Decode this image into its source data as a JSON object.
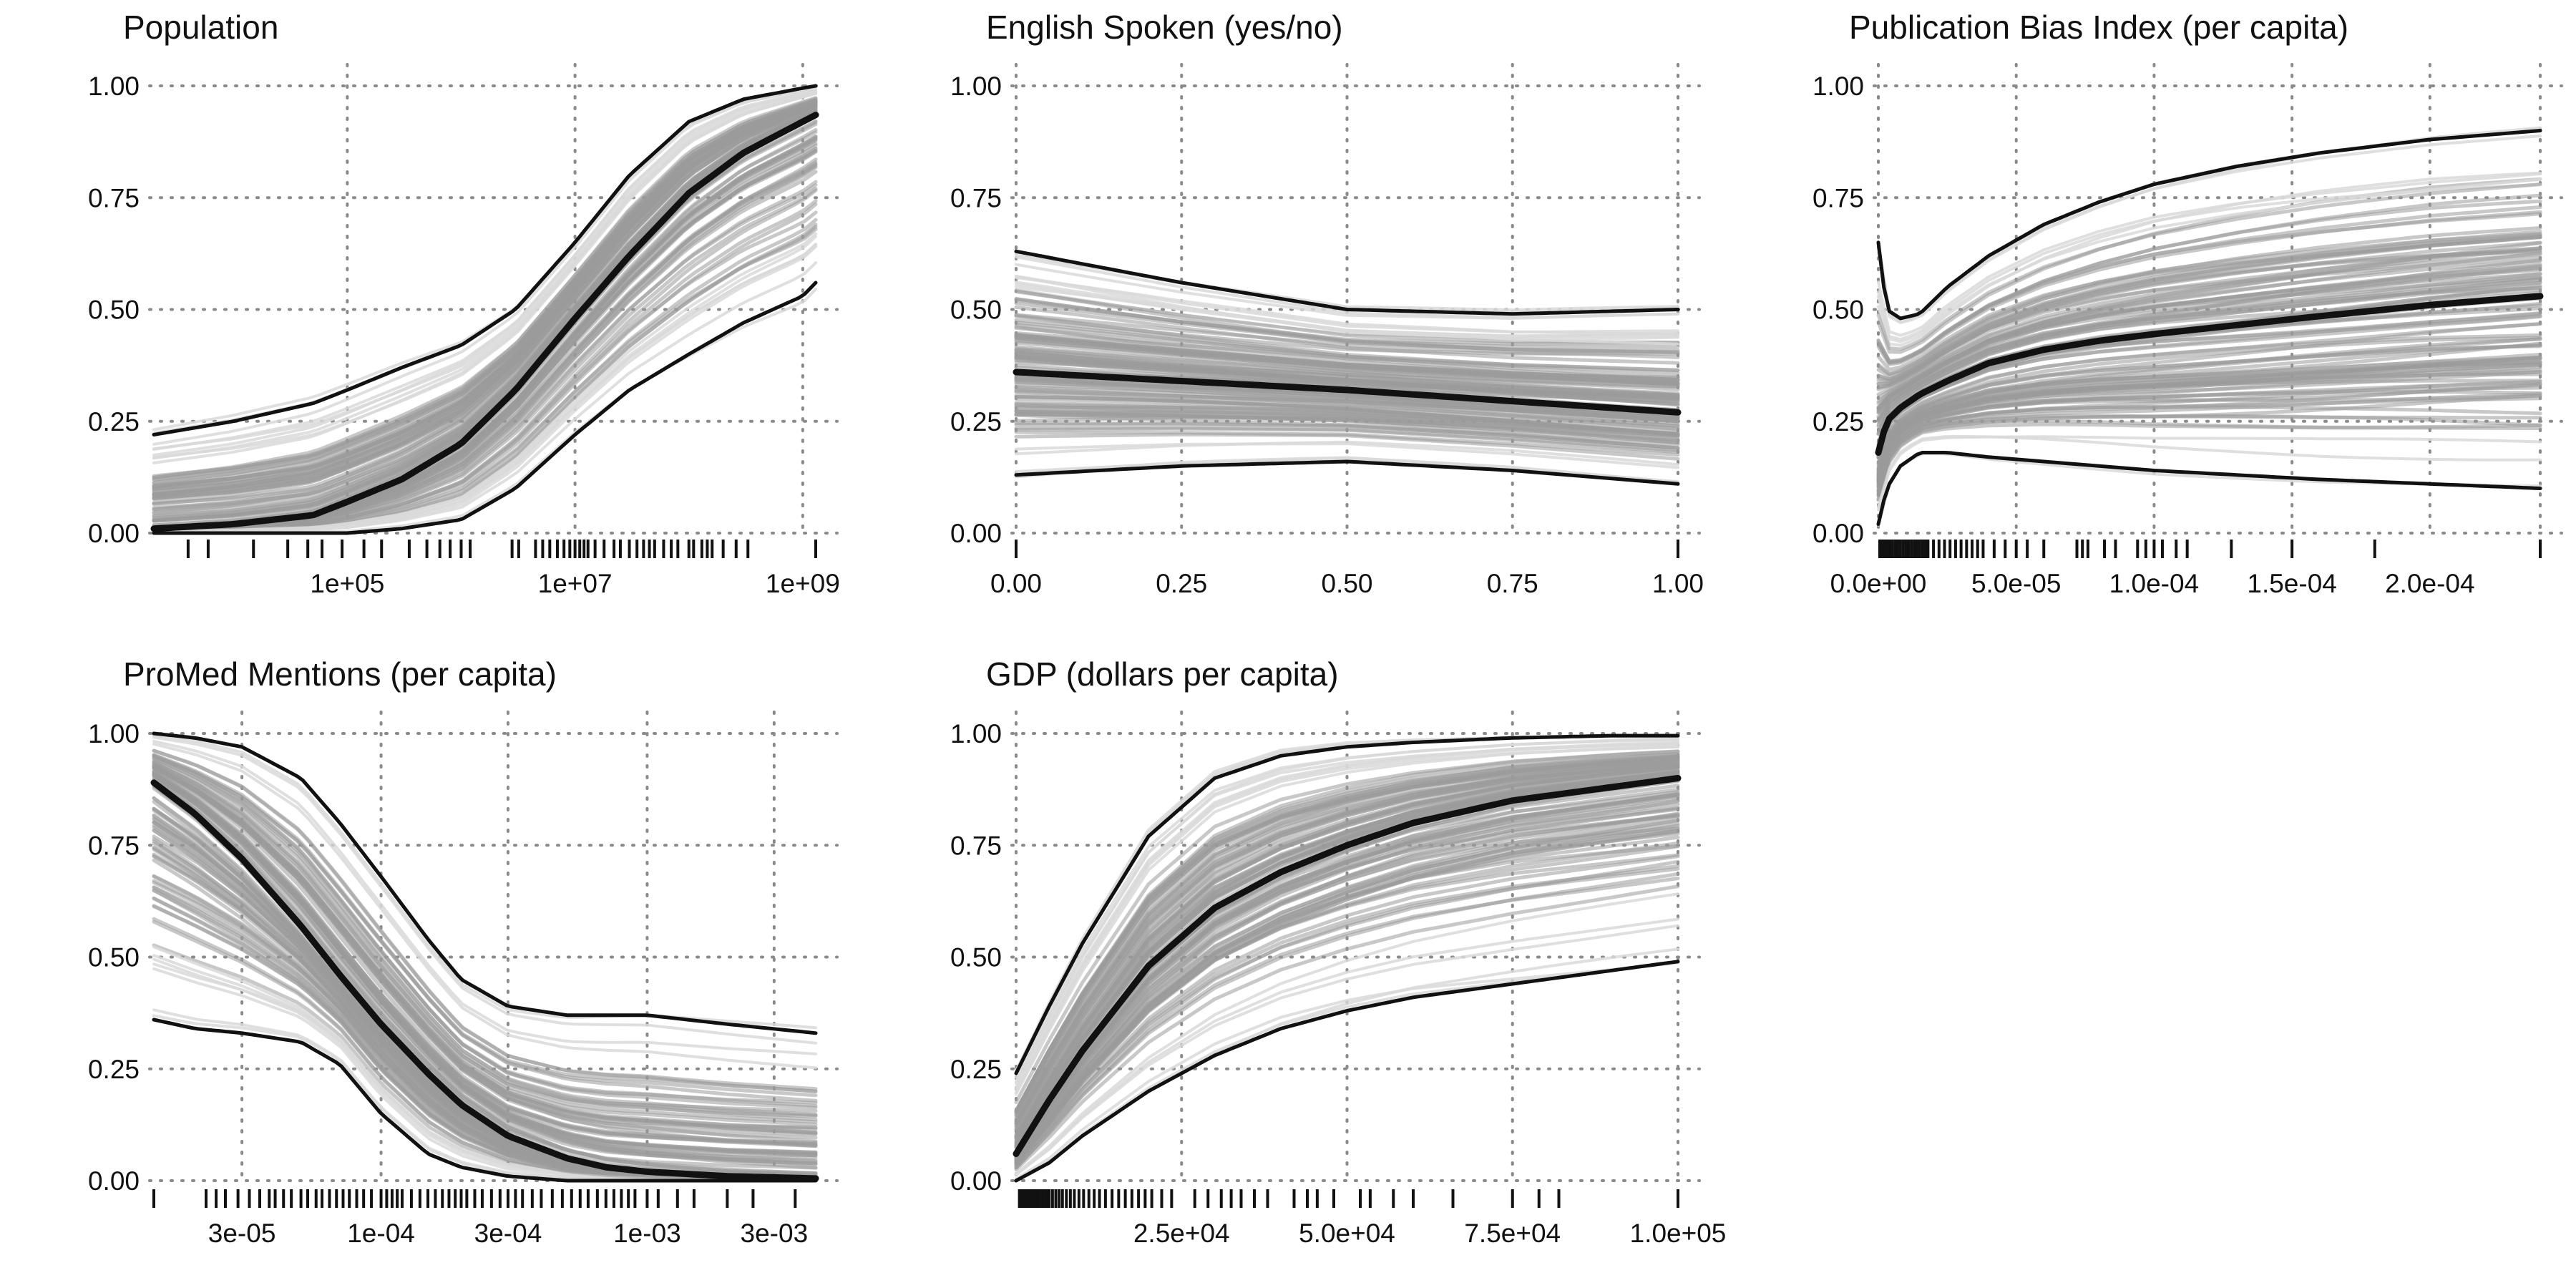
{
  "chart_data": [
    {
      "type": "line",
      "title": "Population",
      "x_scale": "log",
      "xlim": [
        2000,
        1300000000
      ],
      "ylim": [
        0,
        1
      ],
      "x_ticks": [
        {
          "value": 100000,
          "label": "1e+05"
        },
        {
          "value": 10000000,
          "label": "1e+07"
        },
        {
          "value": 1000000000,
          "label": "1e+09"
        }
      ],
      "x_grid": [
        100000,
        10000000,
        1000000000
      ],
      "y_ticks": [
        {
          "value": 0,
          "label": "0.00"
        },
        {
          "value": 0.25,
          "label": "0.25"
        },
        {
          "value": 0.5,
          "label": "0.50"
        },
        {
          "value": 0.75,
          "label": "0.75"
        },
        {
          "value": 1,
          "label": "1.00"
        }
      ],
      "grid": true,
      "x": [
        2000,
        10000,
        50000,
        100000,
        300000,
        1000000,
        3000000,
        10000000,
        30000000,
        100000000,
        300000000,
        1000000000,
        1300000000
      ],
      "series": [
        {
          "role": "upper",
          "values": [
            0.22,
            0.25,
            0.29,
            0.32,
            0.37,
            0.42,
            0.5,
            0.65,
            0.8,
            0.92,
            0.97,
            0.995,
            1.0
          ]
        },
        {
          "role": "mean",
          "values": [
            0.01,
            0.02,
            0.04,
            0.07,
            0.12,
            0.2,
            0.32,
            0.48,
            0.62,
            0.76,
            0.85,
            0.92,
            0.935
          ]
        },
        {
          "role": "lower",
          "values": [
            0.0,
            0.0,
            0.0,
            0.0,
            0.01,
            0.03,
            0.1,
            0.22,
            0.32,
            0.4,
            0.47,
            0.53,
            0.56
          ]
        }
      ],
      "rug": [
        4000,
        6000,
        15000,
        30000,
        45000,
        60000,
        90000,
        140000,
        200000,
        350000,
        500000,
        650000,
        800000,
        1000000,
        1200000,
        2800000,
        3200000,
        4500000,
        5200000,
        6000000,
        7000000,
        8000000,
        9000000,
        10000000,
        11000000,
        12000000,
        13000000,
        15000000,
        18000000,
        22000000,
        25000000,
        30000000,
        35000000,
        40000000,
        45000000,
        50000000,
        60000000,
        70000000,
        80000000,
        100000000,
        110000000,
        130000000,
        145000000,
        160000000,
        200000000,
        260000000,
        330000000,
        1300000000
      ]
    },
    {
      "type": "line",
      "title": "English Spoken (yes/no)",
      "x_scale": "linear",
      "xlim": [
        0,
        1
      ],
      "ylim": [
        0,
        1
      ],
      "x_ticks": [
        {
          "value": 0,
          "label": "0.00"
        },
        {
          "value": 0.25,
          "label": "0.25"
        },
        {
          "value": 0.5,
          "label": "0.50"
        },
        {
          "value": 0.75,
          "label": "0.75"
        },
        {
          "value": 1,
          "label": "1.00"
        }
      ],
      "x_grid": [
        0,
        0.25,
        0.5,
        0.75,
        1
      ],
      "y_ticks": [
        {
          "value": 0,
          "label": "0.00"
        },
        {
          "value": 0.25,
          "label": "0.25"
        },
        {
          "value": 0.5,
          "label": "0.50"
        },
        {
          "value": 0.75,
          "label": "0.75"
        },
        {
          "value": 1,
          "label": "1.00"
        }
      ],
      "grid": true,
      "x": [
        0,
        0.25,
        0.5,
        0.75,
        1
      ],
      "series": [
        {
          "role": "upper",
          "values": [
            0.63,
            0.56,
            0.5,
            0.49,
            0.5
          ]
        },
        {
          "role": "mean",
          "values": [
            0.36,
            0.34,
            0.32,
            0.295,
            0.27
          ]
        },
        {
          "role": "lower",
          "values": [
            0.13,
            0.15,
            0.16,
            0.14,
            0.11
          ]
        }
      ],
      "rug": [
        0,
        1
      ]
    },
    {
      "type": "line",
      "title": "Publication Bias Index (per capita)",
      "x_scale": "linear",
      "xlim": [
        0,
        0.00024
      ],
      "ylim": [
        0,
        1
      ],
      "x_ticks": [
        {
          "value": 0,
          "label": "0.0e+00"
        },
        {
          "value": 5e-05,
          "label": "5.0e-05"
        },
        {
          "value": 0.0001,
          "label": "1.0e-04"
        },
        {
          "value": 0.00015,
          "label": "1.5e-04"
        },
        {
          "value": 0.0002,
          "label": "2.0e-04"
        }
      ],
      "x_grid": [
        0,
        5e-05,
        0.0001,
        0.00015,
        0.0002,
        0.00024
      ],
      "y_ticks": [
        {
          "value": 0,
          "label": "0.00"
        },
        {
          "value": 0.25,
          "label": "0.25"
        },
        {
          "value": 0.5,
          "label": "0.50"
        },
        {
          "value": 0.75,
          "label": "0.75"
        },
        {
          "value": 1,
          "label": "1.00"
        }
      ],
      "grid": true,
      "x": [
        0,
        3e-06,
        8e-06,
        1.5e-05,
        2.5e-05,
        4e-05,
        6e-05,
        8e-05,
        0.0001,
        0.00013,
        0.00016,
        0.0002,
        0.00024
      ],
      "series": [
        {
          "role": "upper",
          "values": [
            0.65,
            0.5,
            0.48,
            0.49,
            0.55,
            0.62,
            0.69,
            0.74,
            0.78,
            0.82,
            0.85,
            0.88,
            0.9
          ]
        },
        {
          "role": "mean",
          "values": [
            0.18,
            0.25,
            0.28,
            0.31,
            0.34,
            0.38,
            0.41,
            0.43,
            0.445,
            0.465,
            0.485,
            0.51,
            0.53
          ]
        },
        {
          "role": "lower",
          "values": [
            0.02,
            0.1,
            0.15,
            0.18,
            0.18,
            0.17,
            0.16,
            0.15,
            0.14,
            0.13,
            0.12,
            0.11,
            0.1
          ]
        }
      ],
      "rug": [
        5e-07,
        1e-06,
        1.5e-06,
        2e-06,
        2.5e-06,
        3e-06,
        3.5e-06,
        4e-06,
        4.5e-06,
        5e-06,
        6e-06,
        7e-06,
        8e-06,
        9e-06,
        1e-05,
        1.1e-05,
        1.2e-05,
        1.3e-05,
        1.4e-05,
        1.5e-05,
        1.6e-05,
        1.7e-05,
        1.8e-05,
        2e-05,
        2.2e-05,
        2.4e-05,
        2.6e-05,
        2.8e-05,
        3e-05,
        3.2e-05,
        3.4e-05,
        3.6e-05,
        3.8e-05,
        4.2e-05,
        4.6e-05,
        5e-05,
        5.4e-05,
        6e-05,
        7.2e-05,
        7.4e-05,
        7.6e-05,
        8.2e-05,
        8.6e-05,
        9.4e-05,
        9.7e-05,
        0.0001,
        0.000103,
        0.000108,
        0.000112,
        0.000128,
        0.00015,
        0.00018,
        0.00024
      ]
    },
    {
      "type": "line",
      "title": "ProMed Mentions (per capita)",
      "x_scale": "log",
      "xlim": [
        1.4e-05,
        0.0043
      ],
      "ylim": [
        0,
        1
      ],
      "x_ticks": [
        {
          "value": 3e-05,
          "label": "3e-05"
        },
        {
          "value": 0.0001,
          "label": "1e-04"
        },
        {
          "value": 0.0003,
          "label": "3e-04"
        },
        {
          "value": 0.001,
          "label": "1e-03"
        },
        {
          "value": 0.003,
          "label": "3e-03"
        }
      ],
      "x_grid": [
        3e-05,
        0.0001,
        0.0003,
        0.001,
        0.003
      ],
      "y_ticks": [
        {
          "value": 0,
          "label": "0.00"
        },
        {
          "value": 0.25,
          "label": "0.25"
        },
        {
          "value": 0.5,
          "label": "0.50"
        },
        {
          "value": 0.75,
          "label": "0.75"
        },
        {
          "value": 1,
          "label": "1.00"
        }
      ],
      "grid": true,
      "x": [
        1.4e-05,
        2e-05,
        3e-05,
        5e-05,
        7e-05,
        0.0001,
        0.00015,
        0.0002,
        0.0003,
        0.0005,
        0.0007,
        0.001,
        0.002,
        0.0043
      ],
      "series": [
        {
          "role": "upper",
          "values": [
            1.0,
            0.99,
            0.97,
            0.9,
            0.8,
            0.68,
            0.54,
            0.45,
            0.39,
            0.37,
            0.37,
            0.37,
            0.35,
            0.33
          ]
        },
        {
          "role": "mean",
          "values": [
            0.89,
            0.82,
            0.72,
            0.57,
            0.46,
            0.35,
            0.24,
            0.17,
            0.1,
            0.05,
            0.03,
            0.02,
            0.01,
            0.005
          ]
        },
        {
          "role": "lower",
          "values": [
            0.36,
            0.34,
            0.33,
            0.31,
            0.26,
            0.15,
            0.06,
            0.03,
            0.01,
            0.0,
            0.0,
            0.0,
            0.0,
            0.0
          ]
        }
      ],
      "rug": [
        1.4e-05,
        2.2e-05,
        2.4e-05,
        2.6e-05,
        2.9e-05,
        3.2e-05,
        3.5e-05,
        3.8e-05,
        4e-05,
        4.3e-05,
        4.6e-05,
        5e-05,
        5.3e-05,
        5.7e-05,
        6e-05,
        6.4e-05,
        6.8e-05,
        7.2e-05,
        7.6e-05,
        8.1e-05,
        8.6e-05,
        9.2e-05,
        0.0001,
        0.000105,
        0.00011,
        0.000115,
        0.00012,
        0.00013,
        0.00014,
        0.00015,
        0.00016,
        0.00017,
        0.00018,
        0.00019,
        0.0002,
        0.00021,
        0.000225,
        0.00024,
        0.00026,
        0.00028,
        0.0003,
        0.00032,
        0.00034,
        0.00037,
        0.0004,
        0.00044,
        0.00048,
        0.00052,
        0.00056,
        0.0006,
        0.00065,
        0.0007,
        0.00075,
        0.0008,
        0.00085,
        0.0009,
        0.001,
        0.0011,
        0.0013,
        0.0015,
        0.002,
        0.0025,
        0.0036
      ]
    },
    {
      "type": "line",
      "title": "GDP (dollars per capita)",
      "x_scale": "linear",
      "xlim": [
        0,
        100000
      ],
      "ylim": [
        0,
        1
      ],
      "x_ticks": [
        {
          "value": 25000,
          "label": "2.5e+04"
        },
        {
          "value": 50000,
          "label": "5.0e+04"
        },
        {
          "value": 75000,
          "label": "7.5e+04"
        },
        {
          "value": 100000,
          "label": "1.0e+05"
        }
      ],
      "x_grid": [
        0,
        25000,
        50000,
        75000,
        100000
      ],
      "y_ticks": [
        {
          "value": 0,
          "label": "0.00"
        },
        {
          "value": 0.25,
          "label": "0.25"
        },
        {
          "value": 0.5,
          "label": "0.50"
        },
        {
          "value": 0.75,
          "label": "0.75"
        },
        {
          "value": 1,
          "label": "1.00"
        }
      ],
      "grid": true,
      "x": [
        0,
        5000,
        10000,
        20000,
        30000,
        40000,
        50000,
        60000,
        75000,
        90000,
        100000
      ],
      "series": [
        {
          "role": "upper",
          "values": [
            0.24,
            0.39,
            0.53,
            0.77,
            0.9,
            0.95,
            0.97,
            0.98,
            0.99,
            0.995,
            0.995
          ]
        },
        {
          "role": "mean",
          "values": [
            0.06,
            0.18,
            0.29,
            0.48,
            0.61,
            0.69,
            0.75,
            0.8,
            0.85,
            0.88,
            0.9
          ]
        },
        {
          "role": "lower",
          "values": [
            0.0,
            0.04,
            0.1,
            0.2,
            0.28,
            0.34,
            0.38,
            0.41,
            0.44,
            0.47,
            0.49
          ]
        }
      ],
      "rug": [
        500,
        800,
        1100,
        1400,
        1700,
        2000,
        2300,
        2600,
        3000,
        3400,
        3800,
        4200,
        4600,
        5000,
        5500,
        6000,
        6500,
        7000,
        7600,
        8200,
        8800,
        9500,
        10200,
        11000,
        11800,
        12600,
        13500,
        14500,
        15500,
        16500,
        17500,
        18500,
        19500,
        20500,
        22000,
        23500,
        27000,
        29000,
        31000,
        32500,
        34000,
        36000,
        38000,
        42000,
        44000,
        45500,
        48000,
        52000,
        53500,
        57000,
        60000,
        66000,
        75000,
        79000,
        82000,
        100000
      ]
    }
  ],
  "style": {
    "summary_color": "#111111",
    "ensemble_dark": "#9a9a9a",
    "ensemble_light": "#d9d9d9",
    "grid_color": "#8a8a8a",
    "background": "#ffffff"
  }
}
